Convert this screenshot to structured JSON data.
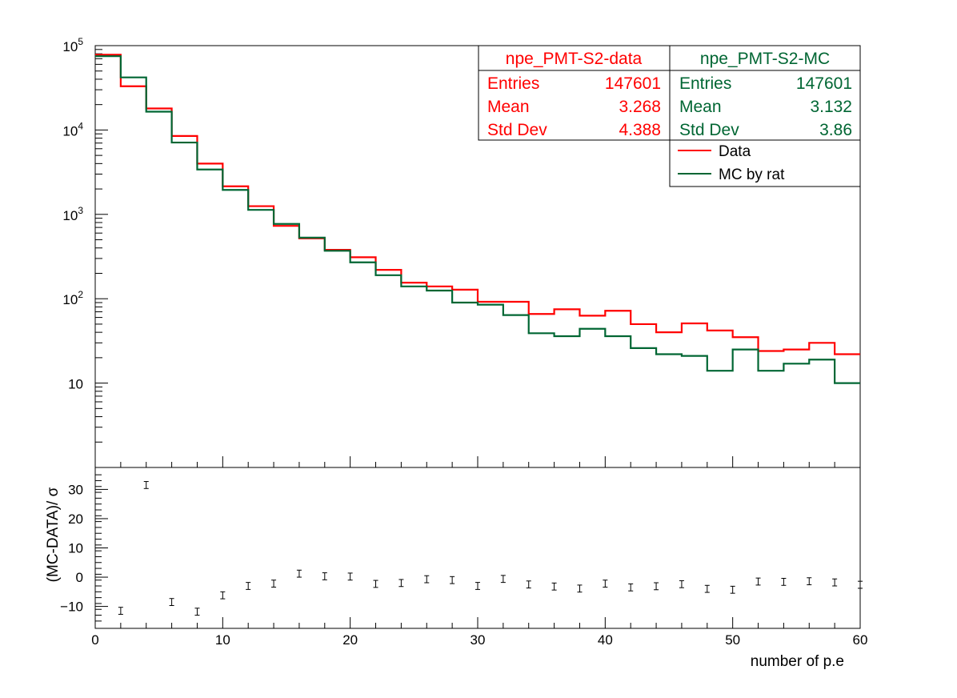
{
  "chart_data": [
    {
      "type": "histogram",
      "xlabel": "",
      "ylabel": "",
      "xlim": [
        0,
        60
      ],
      "ylim": [
        1,
        100000
      ],
      "yscale": "log",
      "y_tick_labels": [
        {
          "value": 10,
          "base": "10",
          "exp": ""
        },
        {
          "value": 100,
          "base": "10",
          "exp": "2"
        },
        {
          "value": 1000,
          "base": "10",
          "exp": "3"
        },
        {
          "value": 10000,
          "base": "10",
          "exp": "4"
        },
        {
          "value": 100000,
          "base": "10",
          "exp": "5"
        }
      ],
      "bin_edges": [
        0,
        2,
        4,
        6,
        8,
        10,
        12,
        14,
        16,
        18,
        20,
        22,
        24,
        26,
        28,
        30,
        32,
        34,
        36,
        38,
        40,
        42,
        44,
        46,
        48,
        50,
        52,
        54,
        56,
        58,
        60
      ],
      "series": [
        {
          "name": "Data",
          "color": "#ff0000",
          "values": [
            78000,
            33000,
            18000,
            8500,
            4000,
            2150,
            1250,
            730,
            520,
            380,
            310,
            220,
            155,
            140,
            128,
            92,
            92,
            66,
            75,
            63,
            72,
            50,
            40,
            51,
            42,
            35,
            24,
            25,
            30,
            22
          ]
        },
        {
          "name": "MC by rat",
          "color": "#006633",
          "values": [
            75000,
            42000,
            16500,
            7100,
            3400,
            1950,
            1130,
            770,
            530,
            370,
            270,
            190,
            140,
            125,
            90,
            85,
            64,
            39,
            36,
            44,
            36,
            26,
            22,
            21,
            14,
            25,
            14,
            17,
            19,
            10
          ]
        }
      ],
      "stats_boxes": [
        {
          "title": "npe_PMT-S2-data",
          "color": "#ff0000",
          "rows": [
            {
              "label": "Entries",
              "value": "147601"
            },
            {
              "label": "Mean",
              "value": "3.268"
            },
            {
              "label": "Std Dev",
              "value": "4.388"
            }
          ]
        },
        {
          "title": "npe_PMT-S2-MC",
          "color": "#006633",
          "rows": [
            {
              "label": "Entries",
              "value": "147601"
            },
            {
              "label": "Mean",
              "value": "3.132"
            },
            {
              "label": "Std Dev",
              "value": "3.86"
            }
          ]
        }
      ],
      "legend": {
        "placement": "top-right",
        "entries": [
          {
            "label": "Data",
            "color": "#ff0000"
          },
          {
            "label": "MC by rat",
            "color": "#006633"
          }
        ]
      }
    },
    {
      "type": "errorbar",
      "xlabel": "number of p.e",
      "ylabel": "(MC-DATA)/ σ",
      "xlim": [
        0,
        60
      ],
      "ylim": [
        -17.5,
        37.5
      ],
      "x_ticks": [
        0,
        10,
        20,
        30,
        40,
        50,
        60
      ],
      "y_ticks": [
        -10,
        0,
        10,
        20,
        30
      ],
      "y_tick_labels": [
        "−10",
        "0",
        "10",
        "20",
        "30"
      ],
      "points": [
        {
          "x": 2,
          "y": -11.5
        },
        {
          "x": 4,
          "y": 31.5
        },
        {
          "x": 6,
          "y": -8.5
        },
        {
          "x": 8,
          "y": -11.8
        },
        {
          "x": 10,
          "y": -6.2
        },
        {
          "x": 12,
          "y": -3.0
        },
        {
          "x": 14,
          "y": -2.2
        },
        {
          "x": 16,
          "y": 1.2
        },
        {
          "x": 18,
          "y": 0.3
        },
        {
          "x": 20,
          "y": 0.2
        },
        {
          "x": 22,
          "y": -2.3
        },
        {
          "x": 24,
          "y": -2.0
        },
        {
          "x": 26,
          "y": -0.7
        },
        {
          "x": 28,
          "y": -1.0
        },
        {
          "x": 30,
          "y": -3.0
        },
        {
          "x": 32,
          "y": -0.6
        },
        {
          "x": 34,
          "y": -2.5
        },
        {
          "x": 36,
          "y": -3.2
        },
        {
          "x": 38,
          "y": -3.9
        },
        {
          "x": 40,
          "y": -2.2
        },
        {
          "x": 42,
          "y": -3.5
        },
        {
          "x": 44,
          "y": -3.1
        },
        {
          "x": 46,
          "y": -2.4
        },
        {
          "x": 48,
          "y": -4.0
        },
        {
          "x": 50,
          "y": -4.3
        },
        {
          "x": 52,
          "y": -1.5
        },
        {
          "x": 54,
          "y": -1.6
        },
        {
          "x": 56,
          "y": -1.4
        },
        {
          "x": 58,
          "y": -1.8
        },
        {
          "x": 60,
          "y": -2.6
        }
      ],
      "error": 1.2
    }
  ]
}
